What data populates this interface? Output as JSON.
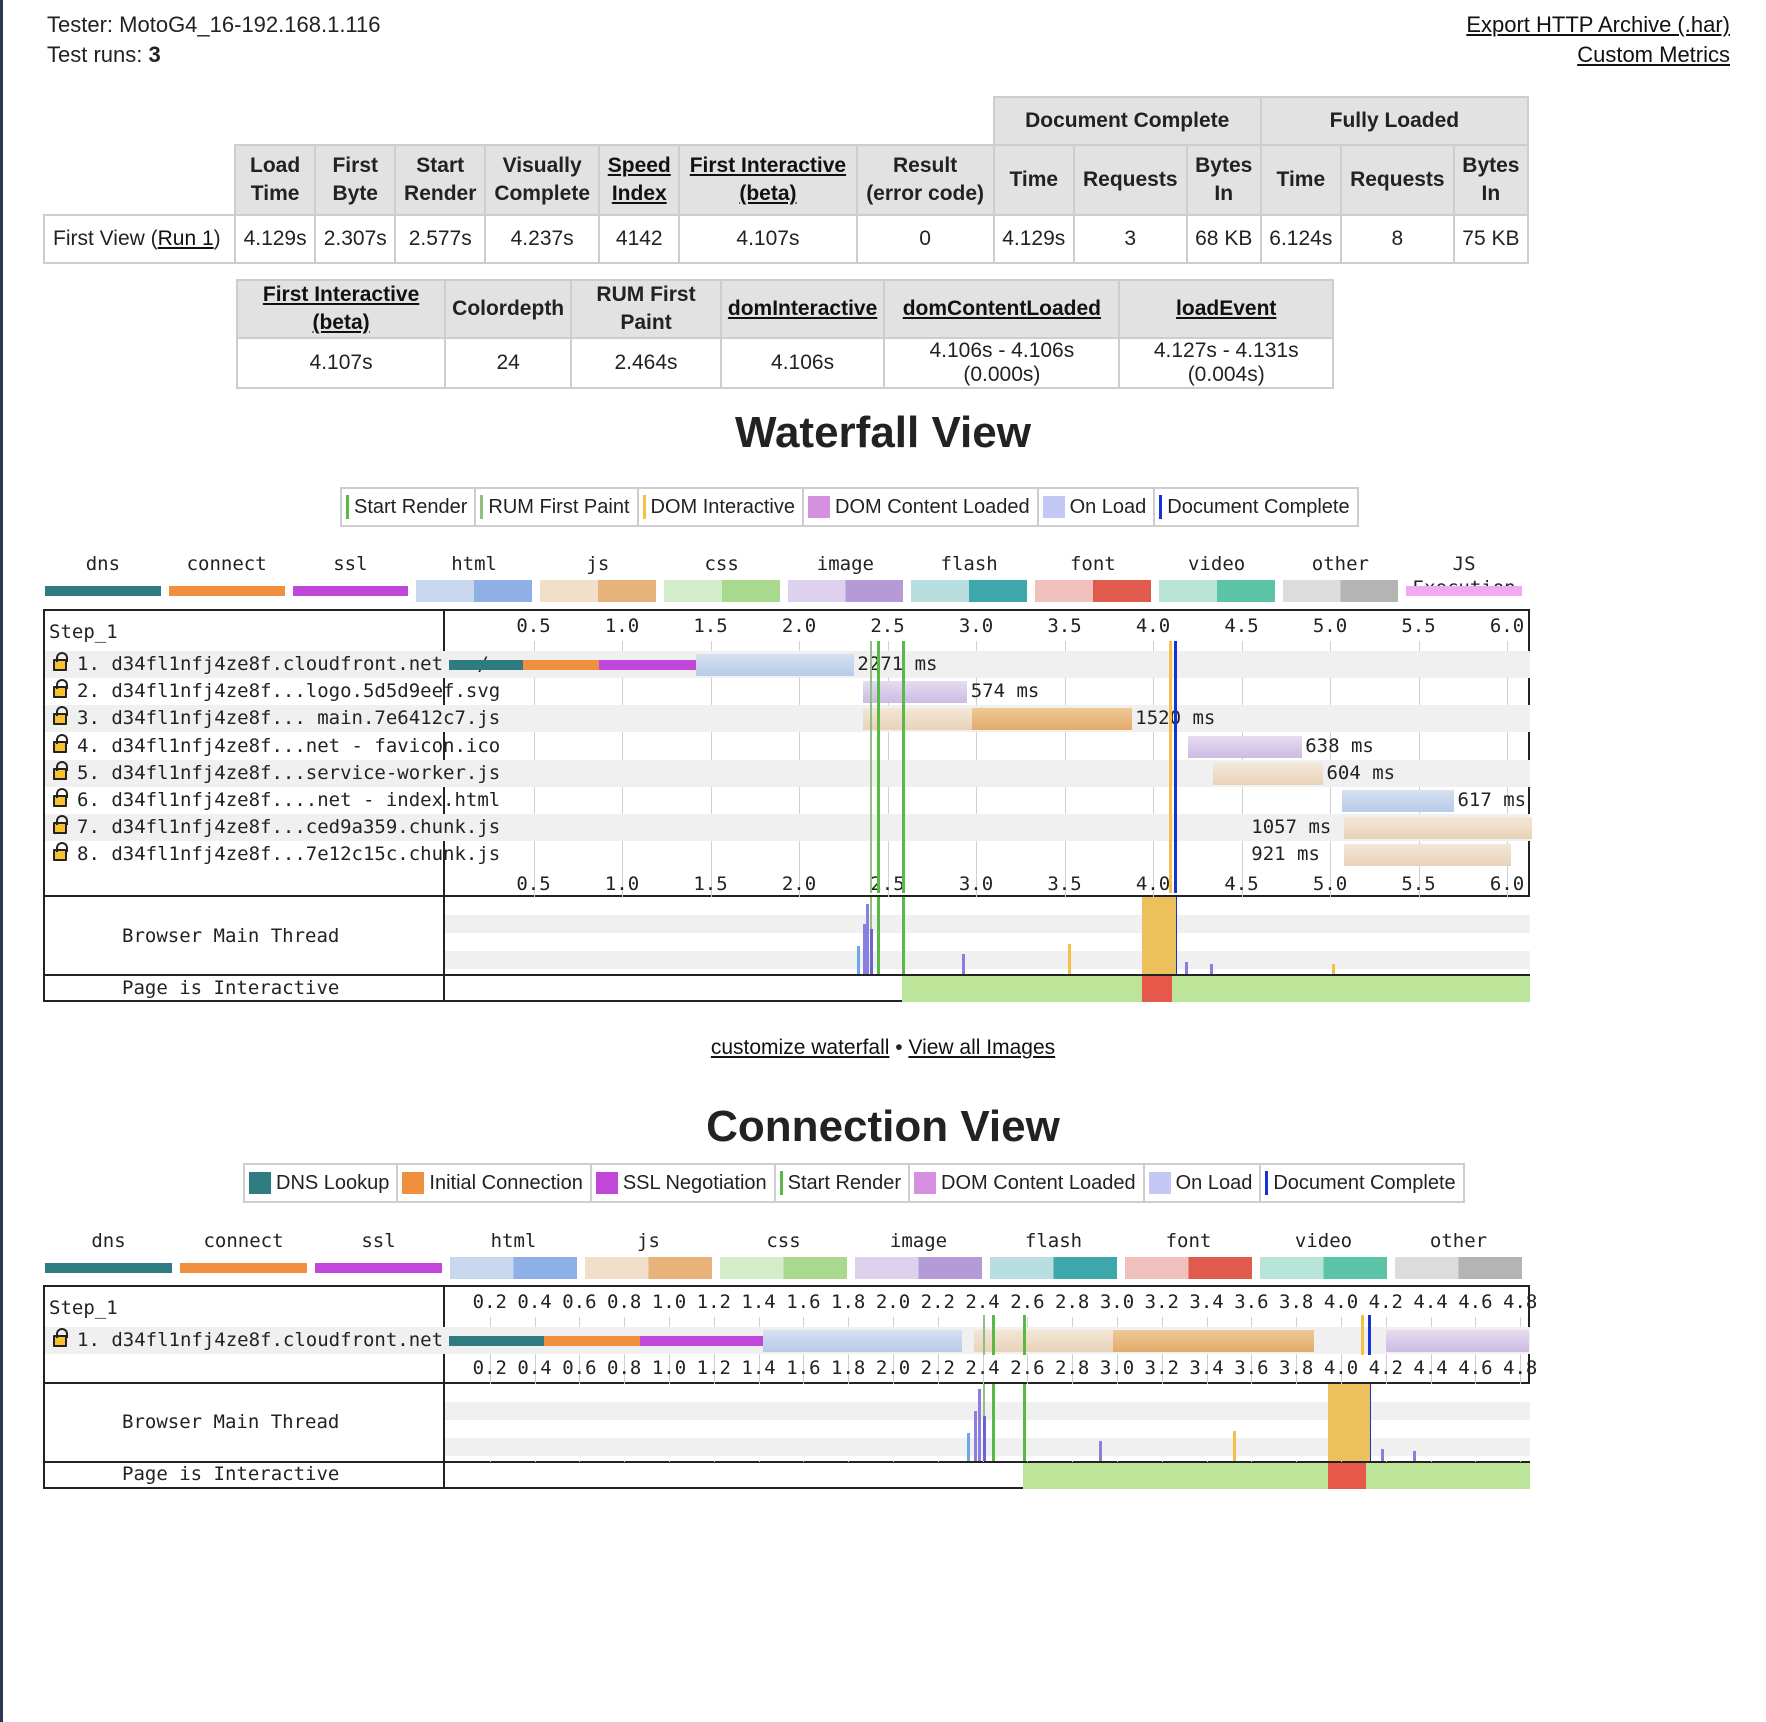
{
  "header": {
    "tester_label": "Tester:",
    "tester_value": "MotoG4_16-192.168.1.116",
    "runs_label": "Test runs:",
    "runs_value": "3",
    "export_link": "Export HTTP Archive (.har)",
    "custom_metrics_link": "Custom Metrics"
  },
  "summary": {
    "group_doc": "Document Complete",
    "group_full": "Fully Loaded",
    "cols": {
      "load_time": [
        "Load",
        "Time"
      ],
      "first_byte": [
        "First",
        "Byte"
      ],
      "start_render": [
        "Start",
        "Render"
      ],
      "visually_complete": [
        "Visually",
        "Complete"
      ],
      "speed_index": [
        "Speed",
        "Index"
      ],
      "first_interactive": [
        "First Interactive",
        "(beta)"
      ],
      "result": [
        "Result",
        "(error code)"
      ],
      "doc_time": "Time",
      "doc_requests": "Requests",
      "doc_bytes": [
        "Bytes",
        "In"
      ],
      "full_time": "Time",
      "full_requests": "Requests",
      "full_bytes": [
        "Bytes",
        "In"
      ]
    },
    "row": {
      "label_prefix": "First View (",
      "label_link": "Run 1",
      "label_suffix": ")",
      "load_time": "4.129s",
      "first_byte": "2.307s",
      "start_render": "2.577s",
      "visually_complete": "4.237s",
      "speed_index": "4142",
      "first_interactive": "4.107s",
      "result": "0",
      "doc_time": "4.129s",
      "doc_requests": "3",
      "doc_bytes": "68 KB",
      "full_time": "6.124s",
      "full_requests": "8",
      "full_bytes": "75 KB"
    }
  },
  "metrics": {
    "headers": [
      "First Interactive (beta)",
      "Colordepth",
      "RUM First Paint",
      "domInteractive",
      "domContentLoaded",
      "loadEvent"
    ],
    "values": [
      "4.107s",
      "24",
      "2.464s",
      "4.106s",
      "4.106s - 4.106s (0.000s)",
      "4.127s - 4.131s (0.004s)"
    ]
  },
  "waterfall": {
    "title": "Waterfall View",
    "legend": [
      "Start Render",
      "RUM First Paint",
      "DOM Interactive",
      "DOM Content Loaded",
      "On Load",
      "Document Complete"
    ],
    "types": [
      "dns",
      "connect",
      "ssl",
      "html",
      "js",
      "css",
      "image",
      "flash",
      "font",
      "video",
      "other",
      "JS Execution"
    ],
    "step_label": "Step_1",
    "ticks": [
      "0.5",
      "1.0",
      "1.5",
      "2.0",
      "2.5",
      "3.0",
      "3.5",
      "4.0",
      "4.5",
      "5.0",
      "5.5",
      "6.0"
    ],
    "requests": [
      {
        "label": "1. d34fl1nfj4ze8f.cloudfront.net - /",
        "duration": "2271 ms"
      },
      {
        "label": "2. d34fl1nfj4ze8f...logo.5d5d9eef.svg",
        "duration": "574 ms"
      },
      {
        "label": "3. d34fl1nfj4ze8f... main.7e6412c7.js",
        "duration": "1520 ms"
      },
      {
        "label": "4. d34fl1nfj4ze8f...net - favicon.ico",
        "duration": "638 ms"
      },
      {
        "label": "5. d34fl1nfj4ze8f...service-worker.js",
        "duration": "604 ms"
      },
      {
        "label": "6. d34fl1nfj4ze8f....net - index.html",
        "duration": "617 ms"
      },
      {
        "label": "7. d34fl1nfj4ze8f...ced9a359.chunk.js",
        "duration": "1057 ms"
      },
      {
        "label": "8. d34fl1nfj4ze8f...7e12c15c.chunk.js",
        "duration": "921 ms"
      }
    ],
    "main_thread_label": "Browser Main Thread",
    "interactive_label": "Page is Interactive"
  },
  "links": {
    "customize": "customize waterfall",
    "separator": " • ",
    "view_images": "View all Images"
  },
  "connection": {
    "title": "Connection View",
    "legend": [
      "DNS Lookup",
      "Initial Connection",
      "SSL Negotiation",
      "Start Render",
      "DOM Content Loaded",
      "On Load",
      "Document Complete"
    ],
    "types": [
      "dns",
      "connect",
      "ssl",
      "html",
      "js",
      "css",
      "image",
      "flash",
      "font",
      "video",
      "other"
    ],
    "step_label": "Step_1",
    "ticks": [
      "0.2",
      "0.4",
      "0.6",
      "0.8",
      "1.0",
      "1.2",
      "1.4",
      "1.6",
      "1.8",
      "2.0",
      "2.2",
      "2.4",
      "2.6",
      "2.8",
      "3.0",
      "3.2",
      "3.4",
      "3.6",
      "3.8",
      "4.0",
      "4.2",
      "4.4",
      "4.6",
      "4.8"
    ],
    "row_label": "1. d34fl1nfj4ze8f.cloudfront.net",
    "main_thread_label": "Browser Main Thread",
    "interactive_label": "Page is Interactive"
  },
  "colors": {
    "dns": "#2f7b82",
    "connect": "#f0903f",
    "ssl": "#c047d9",
    "html_l": "#c8d7ee",
    "html_d": "#8eb0e6",
    "js_l": "#f1dfca",
    "js_d": "#e7b37a",
    "css_l": "#d3ecc9",
    "css_d": "#a8d98e",
    "image_l": "#ddd1ee",
    "image_d": "#b59ad8",
    "flash_l": "#b9dedf",
    "flash_d": "#3ea7ab",
    "font_l": "#efc0bc",
    "font_d": "#e05a4e",
    "video_l": "#b9e4d8",
    "video_d": "#5bc4a6",
    "other_l": "#dcdcdc",
    "other_d": "#b4b4b4",
    "jsexec": "#f0aaf0",
    "start_render": "#58b947",
    "rum_first_paint": "#8fbf82",
    "dom_interactive": "#f4c04a",
    "dom_content_loaded": "#d690e0",
    "on_load": "#c4c8f5",
    "doc_complete": "#1434d6",
    "interactive_green": "#bde59a",
    "interactive_red": "#e8584a",
    "busy_orange": "#ecc15c"
  }
}
